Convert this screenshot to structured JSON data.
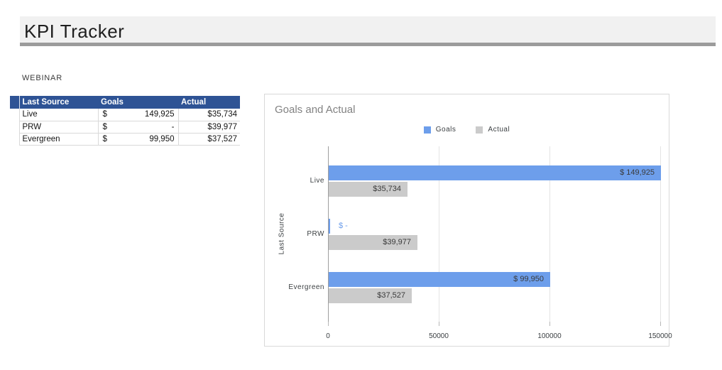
{
  "header": {
    "title": "KPI Tracker"
  },
  "section": {
    "label": "WEBINAR"
  },
  "table": {
    "columns": {
      "source": "Last Source",
      "goals": "Goals",
      "actual": "Actual"
    },
    "rows": [
      {
        "source": "Live",
        "goals_currency": "$",
        "goals": "149,925",
        "actual": "$35,734"
      },
      {
        "source": "PRW",
        "goals_currency": "$",
        "goals": "-",
        "actual": "$39,977"
      },
      {
        "source": "Evergreen",
        "goals_currency": "$",
        "goals": "99,950",
        "actual": "$37,527"
      }
    ]
  },
  "chart": {
    "title": "Goals and Actual",
    "legend": [
      {
        "label": "Goals",
        "color": "#6d9eeb"
      },
      {
        "label": "Actual",
        "color": "#cbcbcb"
      }
    ]
  },
  "chart_data": {
    "type": "bar",
    "orientation": "horizontal",
    "title": "Goals and Actual",
    "categories": [
      "Live",
      "PRW",
      "Evergreen"
    ],
    "series": [
      {
        "name": "Goals",
        "color": "#6d9eeb",
        "values": [
          149925,
          0,
          99950
        ],
        "labels": [
          "$ 149,925",
          "$ -",
          "$ 99,950"
        ]
      },
      {
        "name": "Actual",
        "color": "#cbcbcb",
        "values": [
          35734,
          39977,
          37527
        ],
        "labels": [
          "$35,734",
          "$39,977",
          "$37,527"
        ]
      }
    ],
    "xlabel": "",
    "ylabel": "Last Source",
    "xlim": [
      0,
      150000
    ],
    "xticks": [
      0,
      50000,
      100000,
      150000
    ],
    "grid": true,
    "legend_position": "top-center"
  }
}
